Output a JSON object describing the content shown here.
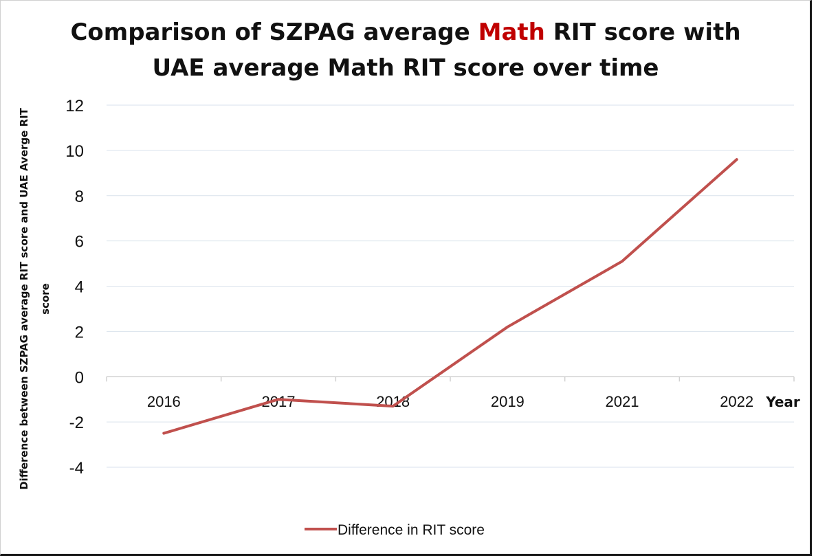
{
  "title": {
    "line1_before": "Comparison of SZPAG average ",
    "line1_highlight": "Math",
    "line1_after": " RIT score with",
    "line2": "UAE average Math RIT score over time",
    "highlight_color": "#c00000"
  },
  "chart_data": {
    "type": "line",
    "categories": [
      "2016",
      "2017",
      "2018",
      "2019",
      "2021",
      "2022"
    ],
    "series": [
      {
        "name": "Difference in RIT score",
        "values": [
          -2.5,
          -1.0,
          -1.3,
          2.2,
          5.1,
          9.6
        ],
        "color": "#c0504d"
      }
    ],
    "xlabel": "Year",
    "ylabel_line1": "Difference between SZPAG average RIT score and UAE Averge RIT",
    "ylabel_line2": "score",
    "ylim": [
      -4,
      12
    ],
    "yticks": [
      "-4",
      "-2",
      "0",
      "2",
      "4",
      "6",
      "8",
      "10",
      "12"
    ],
    "grid": true,
    "legend_position": "bottom"
  }
}
